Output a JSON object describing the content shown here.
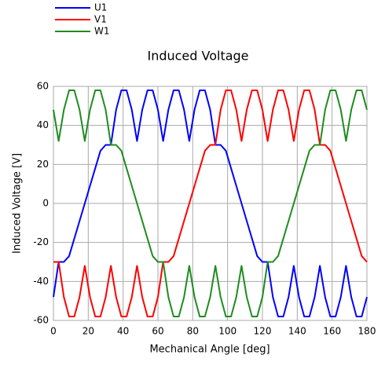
{
  "chart_data": {
    "type": "line",
    "title": "Induced Voltage",
    "x_label": "Mechanical Angle [deg]",
    "y_label": "Induced Voltage [V]",
    "x": [
      0,
      3,
      6,
      9,
      12,
      15,
      18,
      21,
      24,
      27,
      30,
      33,
      36,
      39,
      42,
      45,
      48,
      51,
      54,
      57,
      60,
      63,
      66,
      69,
      72,
      75,
      78,
      81,
      84,
      87,
      90,
      93,
      96,
      99,
      102,
      105,
      108,
      111,
      114,
      117,
      120,
      123,
      126,
      129,
      132,
      135,
      138,
      141,
      144,
      147,
      150,
      153,
      156,
      159,
      162,
      165,
      168,
      171,
      174,
      177,
      180
    ],
    "series": [
      {
        "name": "U1",
        "color": "#0000ff",
        "values": [
          -48,
          -30,
          -30,
          -27,
          -18,
          -9,
          0,
          9,
          18,
          27,
          30,
          30,
          48,
          58,
          58,
          48,
          32,
          48,
          58,
          58,
          48,
          32,
          48,
          58,
          58,
          48,
          32,
          48,
          58,
          58,
          48,
          30,
          30,
          27,
          18,
          9,
          0,
          -9,
          -18,
          -27,
          -30,
          -30,
          -48,
          -58,
          -58,
          -48,
          -32,
          -48,
          -58,
          -58,
          -48,
          -32,
          -48,
          -58,
          -58,
          -48,
          -32,
          -48,
          -58,
          -58,
          -48
        ]
      },
      {
        "name": "V1",
        "color": "#ff0000",
        "values": [
          -30,
          -30,
          -48,
          -58,
          -58,
          -48,
          -32,
          -48,
          -58,
          -58,
          -48,
          -32,
          -48,
          -58,
          -58,
          -48,
          -32,
          -48,
          -58,
          -58,
          -48,
          -30,
          -30,
          -27,
          -18,
          -9,
          0,
          9,
          18,
          27,
          30,
          30,
          48,
          58,
          58,
          48,
          32,
          48,
          58,
          58,
          48,
          32,
          48,
          58,
          58,
          48,
          32,
          48,
          58,
          58,
          48,
          30,
          30,
          27,
          18,
          9,
          0,
          -9,
          -18,
          -27,
          -30
        ]
      },
      {
        "name": "W1",
        "color": "#1e8c1e",
        "values": [
          48,
          32,
          48,
          58,
          58,
          48,
          32,
          48,
          58,
          58,
          48,
          30,
          30,
          27,
          18,
          9,
          0,
          -9,
          -18,
          -27,
          -30,
          -30,
          -48,
          -58,
          -58,
          -48,
          -32,
          -48,
          -58,
          -58,
          -48,
          -32,
          -48,
          -58,
          -58,
          -48,
          -32,
          -48,
          -58,
          -58,
          -48,
          -30,
          -30,
          -27,
          -18,
          -9,
          0,
          9,
          18,
          27,
          30,
          30,
          48,
          58,
          58,
          48,
          32,
          48,
          58,
          58,
          48
        ]
      }
    ],
    "xlim": [
      0,
      180
    ],
    "ylim": [
      -60,
      60
    ],
    "xticks": [
      0,
      20,
      40,
      60,
      80,
      100,
      120,
      140,
      160,
      180
    ],
    "yticks": [
      -60,
      -40,
      -20,
      0,
      20,
      40,
      60
    ],
    "grid": true,
    "legend": "top-left"
  }
}
